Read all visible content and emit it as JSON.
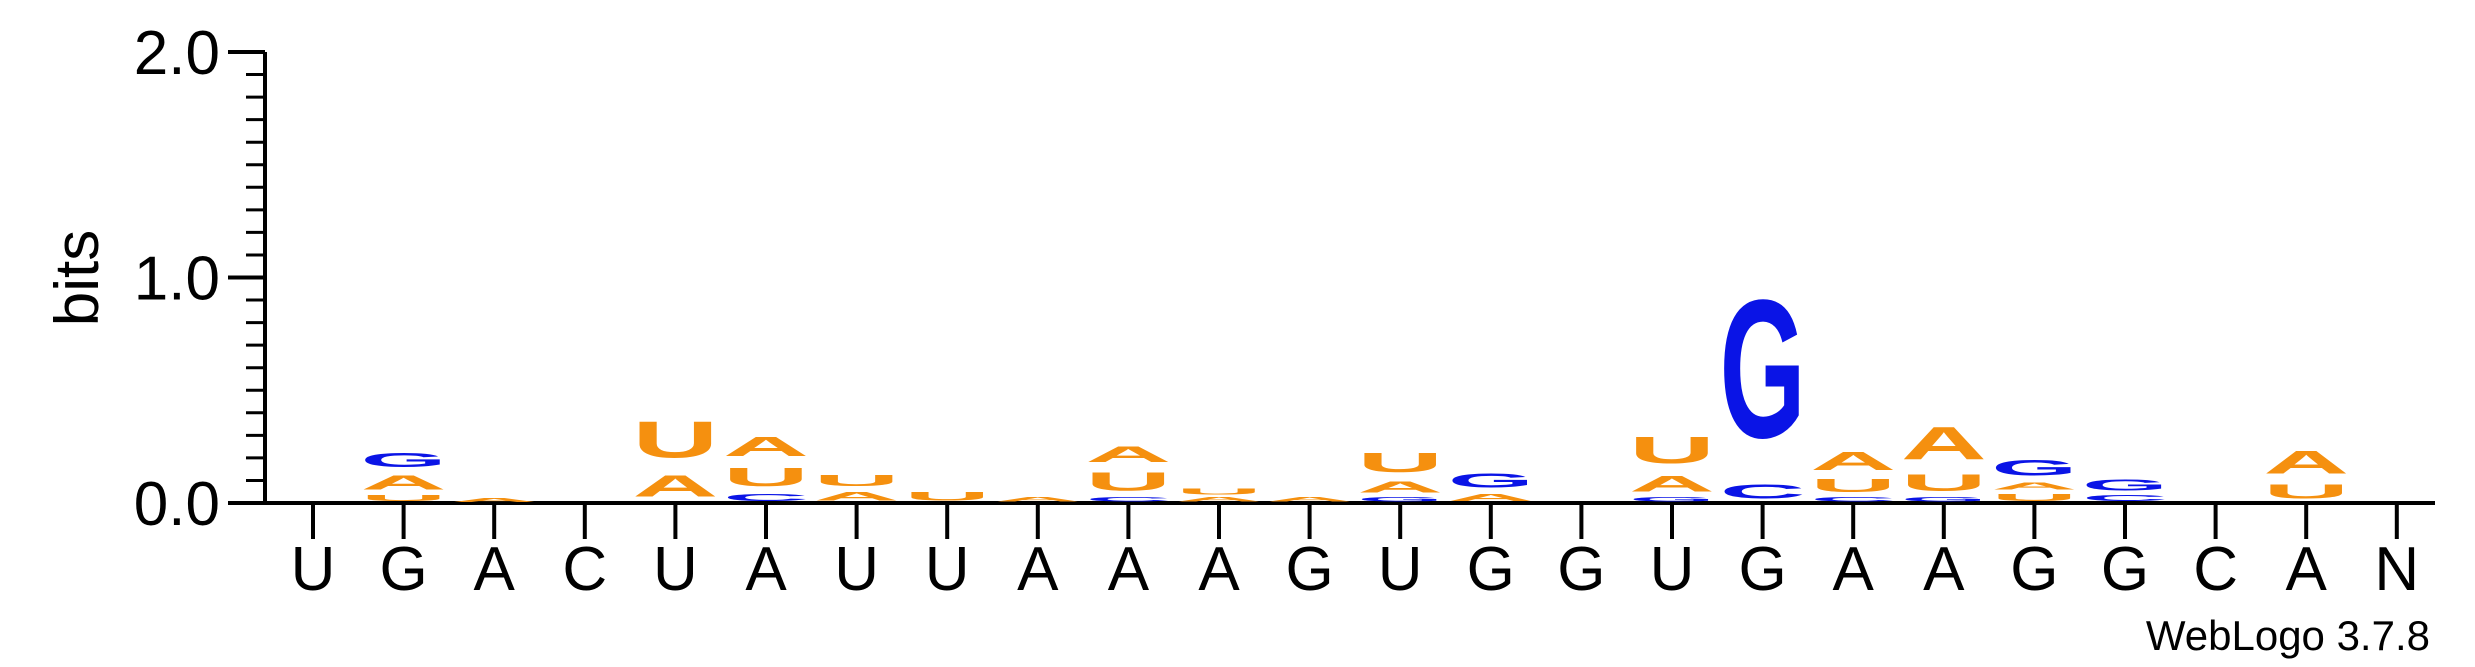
{
  "chart_data": {
    "type": "sequence-logo",
    "ylabel": "bits",
    "ylim": [
      0,
      2.0
    ],
    "yticks": [
      "0.0",
      "1.0",
      "2.0"
    ],
    "credit": "WebLogo 3.7.8",
    "colors": {
      "A": "#f5900f",
      "U": "#f5900f",
      "G": "#0a14e6",
      "C": "#0a14e6"
    },
    "positions": [
      {
        "label": "U",
        "stack": []
      },
      {
        "label": "G",
        "stack": [
          {
            "letter": "U",
            "bits": 0.04
          },
          {
            "letter": "A",
            "bits": 0.1
          },
          {
            "letter": "G",
            "bits": 0.1
          }
        ]
      },
      {
        "label": "A",
        "stack": [
          {
            "letter": "A",
            "bits": 0.025
          }
        ]
      },
      {
        "label": "C",
        "stack": []
      },
      {
        "label": "U",
        "stack": [
          {
            "letter": "A",
            "bits": 0.15
          },
          {
            "letter": "U",
            "bits": 0.26
          }
        ]
      },
      {
        "label": "A",
        "stack": [
          {
            "letter": "C",
            "bits": 0.05
          },
          {
            "letter": "U",
            "bits": 0.13
          },
          {
            "letter": "A",
            "bits": 0.14
          }
        ]
      },
      {
        "label": "U",
        "stack": [
          {
            "letter": "A",
            "bits": 0.06
          },
          {
            "letter": "U",
            "bits": 0.08
          }
        ]
      },
      {
        "label": "U",
        "stack": [
          {
            "letter": "U",
            "bits": 0.06
          }
        ]
      },
      {
        "label": "A",
        "stack": [
          {
            "letter": "A",
            "bits": 0.03
          }
        ]
      },
      {
        "label": "A",
        "stack": [
          {
            "letter": "C",
            "bits": 0.03
          },
          {
            "letter": "U",
            "bits": 0.13
          },
          {
            "letter": "A",
            "bits": 0.11
          }
        ]
      },
      {
        "label": "A",
        "stack": [
          {
            "letter": "A",
            "bits": 0.03
          },
          {
            "letter": "U",
            "bits": 0.04
          }
        ]
      },
      {
        "label": "G",
        "stack": [
          {
            "letter": "A",
            "bits": 0.03
          }
        ]
      },
      {
        "label": "U",
        "stack": [
          {
            "letter": "G",
            "bits": 0.03
          },
          {
            "letter": "A",
            "bits": 0.08
          },
          {
            "letter": "U",
            "bits": 0.14
          }
        ]
      },
      {
        "label": "G",
        "stack": [
          {
            "letter": "A",
            "bits": 0.05
          },
          {
            "letter": "G",
            "bits": 0.1
          }
        ]
      },
      {
        "label": "G",
        "stack": []
      },
      {
        "label": "U",
        "stack": [
          {
            "letter": "G",
            "bits": 0.03
          },
          {
            "letter": "A",
            "bits": 0.11
          },
          {
            "letter": "U",
            "bits": 0.19
          }
        ]
      },
      {
        "label": "G",
        "stack": [
          {
            "letter": "C",
            "bits": 0.1
          },
          {
            "letter": "G",
            "bits": 0.98
          }
        ]
      },
      {
        "label": "A",
        "stack": [
          {
            "letter": "C",
            "bits": 0.03
          },
          {
            "letter": "U",
            "bits": 0.09
          },
          {
            "letter": "A",
            "bits": 0.13
          }
        ]
      },
      {
        "label": "A",
        "stack": [
          {
            "letter": "G",
            "bits": 0.03
          },
          {
            "letter": "U",
            "bits": 0.12
          },
          {
            "letter": "A",
            "bits": 0.23
          }
        ]
      },
      {
        "label": "G",
        "stack": [
          {
            "letter": "U",
            "bits": 0.05
          },
          {
            "letter": "A",
            "bits": 0.05
          },
          {
            "letter": "G",
            "bits": 0.11
          }
        ]
      },
      {
        "label": "G",
        "stack": [
          {
            "letter": "C",
            "bits": 0.04
          },
          {
            "letter": "G",
            "bits": 0.08
          }
        ]
      },
      {
        "label": "C",
        "stack": []
      },
      {
        "label": "A",
        "stack": [
          {
            "letter": "U",
            "bits": 0.1
          },
          {
            "letter": "A",
            "bits": 0.16
          }
        ]
      },
      {
        "label": "N",
        "stack": []
      }
    ]
  }
}
